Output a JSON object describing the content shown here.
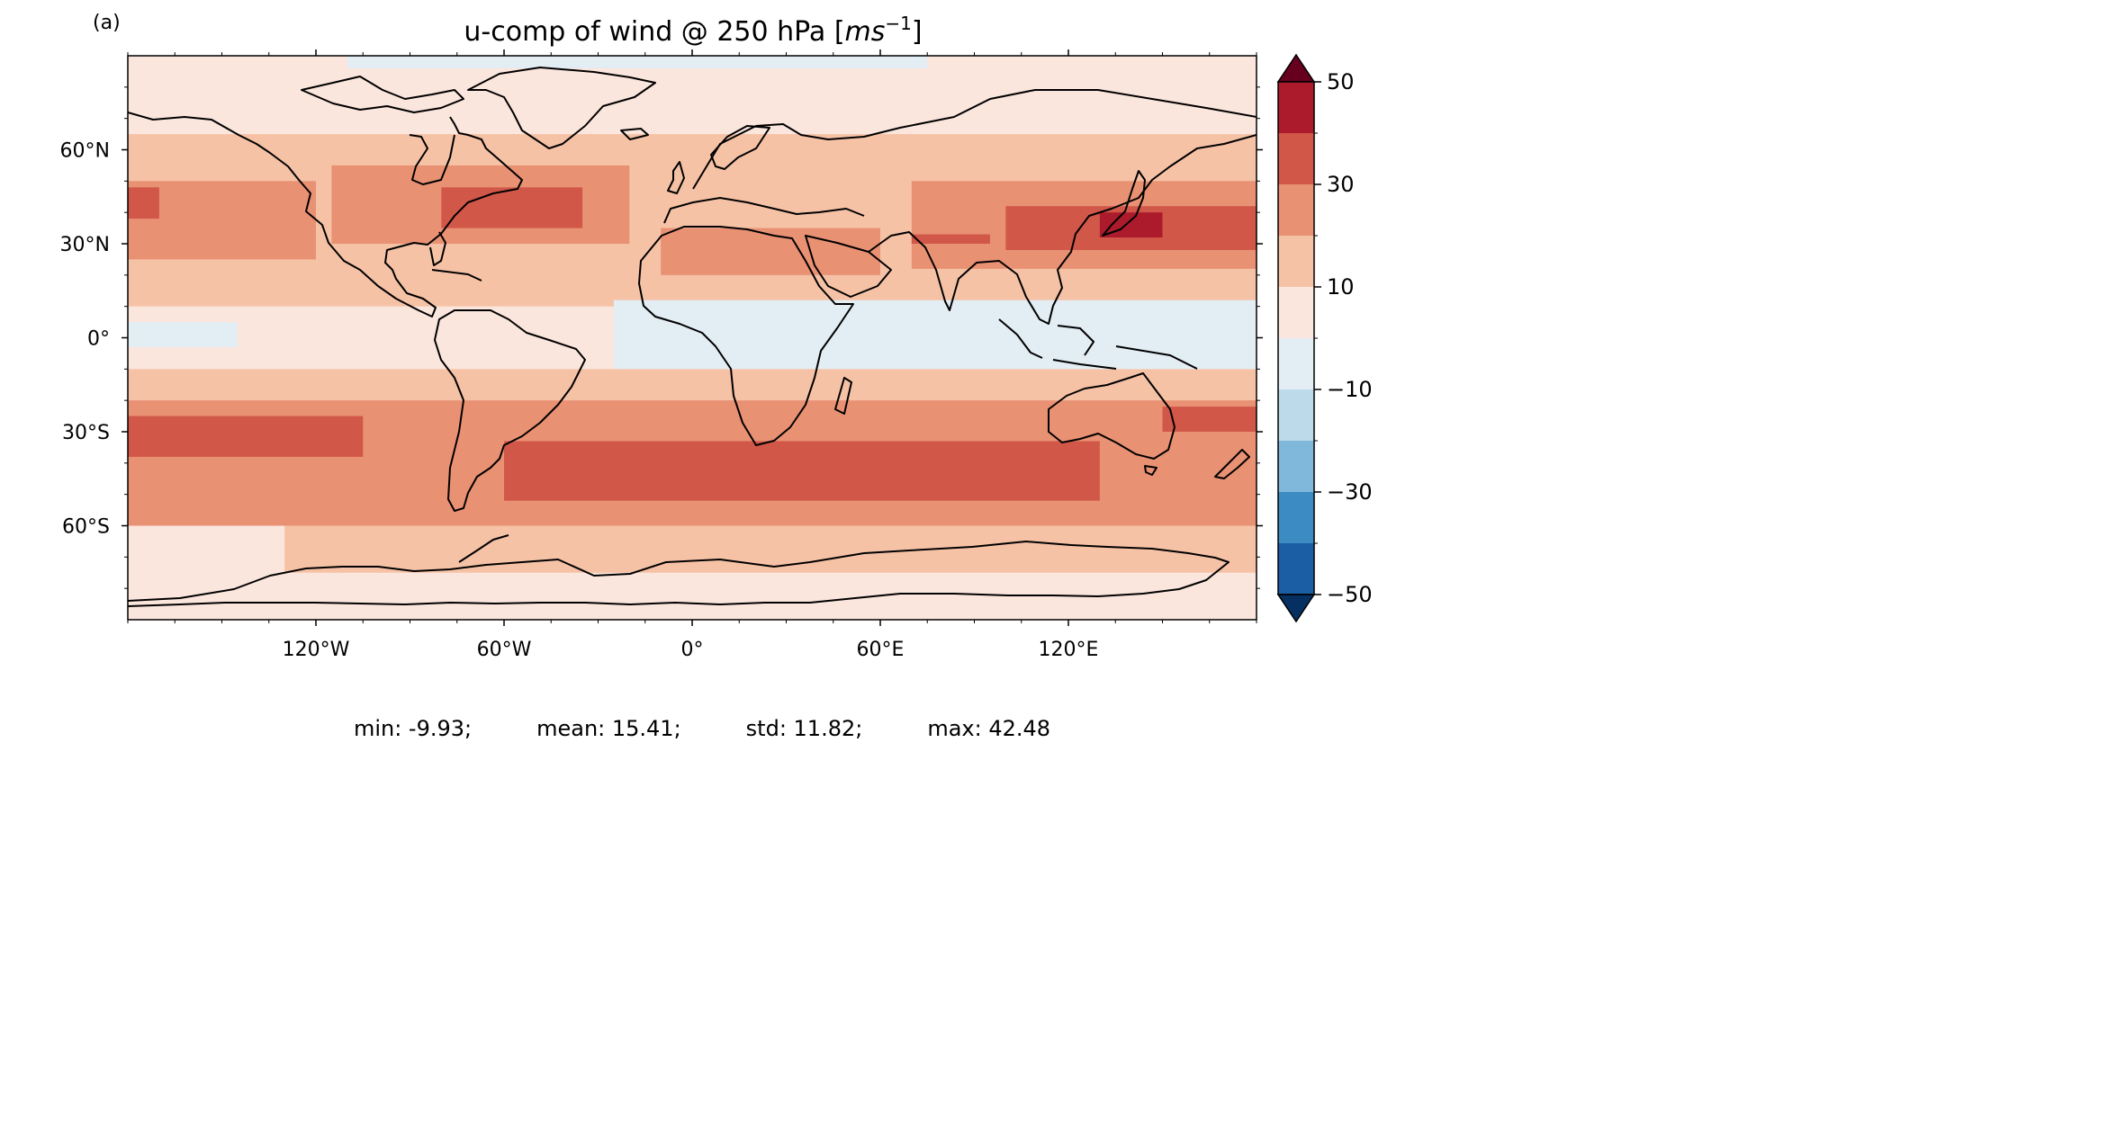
{
  "panel_label": "(a)",
  "title": "u-comp of wind @ 250 hPa",
  "title_unit": "ms",
  "title_unit_exp": "−1",
  "colorbar": {
    "ticks": [
      "50",
      "30",
      "10",
      "−10",
      "−30",
      "−50"
    ],
    "levels": [
      -50,
      -40,
      -30,
      -20,
      -10,
      0,
      10,
      20,
      30,
      40,
      50
    ],
    "colors": [
      "#053061",
      "#1b5ea4",
      "#3c8cc3",
      "#7fb8da",
      "#bcdaea",
      "#e3edf4",
      "#fbe6dd",
      "#f6c2a6",
      "#e99173",
      "#d15749",
      "#ac1b2c",
      "#67001f"
    ],
    "extend": "both"
  },
  "axes": {
    "lat_ticks": [
      "60°N",
      "30°N",
      "0°",
      "30°S",
      "60°S"
    ],
    "lon_ticks": [
      "120°W",
      "60°W",
      "0°",
      "60°E",
      "120°E"
    ],
    "lon_range": [
      -180,
      180
    ],
    "lat_range": [
      -90,
      90
    ],
    "projection": "PlateCarree"
  },
  "stats": {
    "min": "min: -9.93;",
    "mean": "mean: 15.41;",
    "std": "std: 11.82;",
    "max": "max: 42.48"
  },
  "chart_data": {
    "type": "heatmap",
    "variable": "u-comp of wind @ 250 hPa",
    "units": "ms^-1",
    "min": -9.93,
    "mean": 15.41,
    "std": 11.82,
    "max": 42.48,
    "lon_range": [
      -180,
      180
    ],
    "lat_range": [
      -90,
      90
    ],
    "regions": [
      {
        "lon": [
          -180,
          180
        ],
        "lat": [
          -90,
          90
        ],
        "level": 6
      },
      {
        "lon": [
          -180,
          180
        ],
        "lat": [
          10,
          65
        ],
        "level": 7
      },
      {
        "lon": [
          -180,
          180
        ],
        "lat": [
          -58,
          -10
        ],
        "level": 7
      },
      {
        "lon": [
          -130,
          180
        ],
        "lat": [
          -75,
          -58
        ],
        "level": 7
      },
      {
        "lon": [
          -180,
          -120
        ],
        "lat": [
          25,
          50
        ],
        "level": 8
      },
      {
        "lon": [
          -115,
          -20
        ],
        "lat": [
          30,
          55
        ],
        "level": 8
      },
      {
        "lon": [
          -10,
          60
        ],
        "lat": [
          20,
          35
        ],
        "level": 8
      },
      {
        "lon": [
          70,
          180
        ],
        "lat": [
          22,
          50
        ],
        "level": 8
      },
      {
        "lon": [
          -180,
          180
        ],
        "lat": [
          -60,
          -20
        ],
        "level": 8
      },
      {
        "lon": [
          -180,
          -170
        ],
        "lat": [
          38,
          48
        ],
        "level": 9
      },
      {
        "lon": [
          -80,
          -35
        ],
        "lat": [
          35,
          48
        ],
        "level": 9
      },
      {
        "lon": [
          70,
          95
        ],
        "lat": [
          30,
          33
        ],
        "level": 9
      },
      {
        "lon": [
          100,
          180
        ],
        "lat": [
          28,
          42
        ],
        "level": 9
      },
      {
        "lon": [
          -180,
          -105
        ],
        "lat": [
          -38,
          -25
        ],
        "level": 9
      },
      {
        "lon": [
          -60,
          130
        ],
        "lat": [
          -52,
          -33
        ],
        "level": 9
      },
      {
        "lon": [
          150,
          180
        ],
        "lat": [
          -30,
          -22
        ],
        "level": 9
      },
      {
        "lon": [
          130,
          150
        ],
        "lat": [
          32,
          40
        ],
        "level": 10
      },
      {
        "lon": [
          -180,
          -145
        ],
        "lat": [
          -3,
          5
        ],
        "level": 5
      },
      {
        "lon": [
          -25,
          180
        ],
        "lat": [
          -10,
          12
        ],
        "level": 5
      },
      {
        "lon": [
          -110,
          75
        ],
        "lat": [
          86,
          90
        ],
        "level": 5
      }
    ]
  }
}
